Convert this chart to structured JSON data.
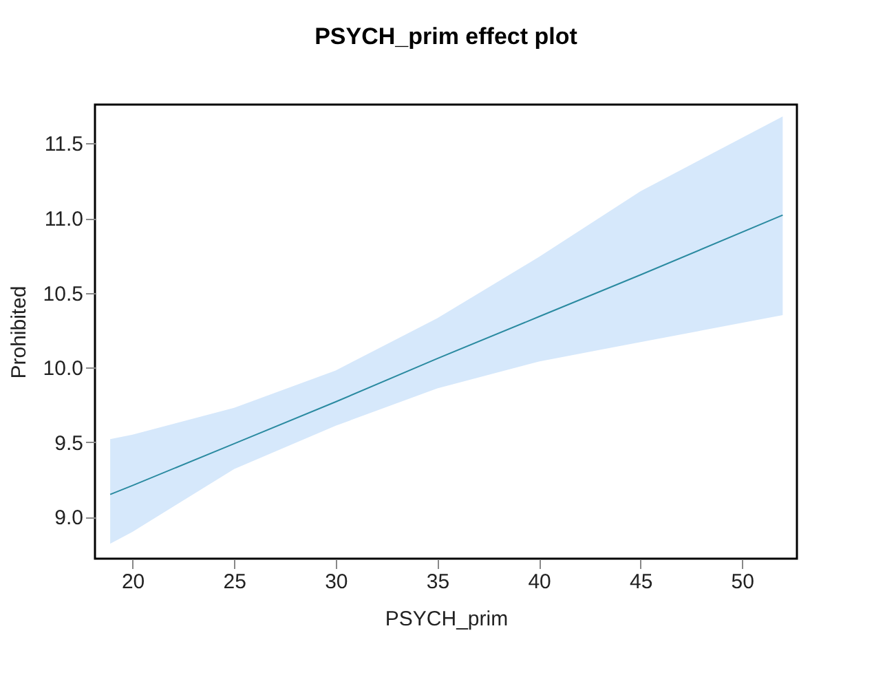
{
  "chart_data": {
    "type": "line",
    "title": "PSYCH_prim effect plot",
    "xlabel": "PSYCH_prim",
    "ylabel": "Prohibited",
    "x": [
      18.9,
      20,
      25,
      30,
      35,
      40,
      45,
      52
    ],
    "series": [
      {
        "color": "#2a8aa0",
        "values": [
          9.15,
          9.21,
          9.49,
          9.77,
          10.06,
          10.34,
          10.62,
          11.02
        ],
        "lower": [
          8.82,
          8.9,
          9.32,
          9.61,
          9.86,
          10.04,
          10.17,
          10.35
        ],
        "upper": [
          9.52,
          9.55,
          9.73,
          9.98,
          10.33,
          10.74,
          11.18,
          11.68
        ]
      }
    ],
    "xlim": [
      18.15,
      52.7
    ],
    "ylim": [
      8.72,
      11.76
    ],
    "xticks": [
      20,
      25,
      30,
      35,
      40,
      45,
      50
    ],
    "yticks": [
      {
        "value": 9,
        "label": "9.0"
      },
      9.5,
      {
        "value": 10,
        "label": "10.0"
      },
      10.5,
      {
        "value": 11,
        "label": "11.0"
      },
      11.5
    ],
    "grid": false,
    "marker": "none",
    "line_style": "solid"
  }
}
